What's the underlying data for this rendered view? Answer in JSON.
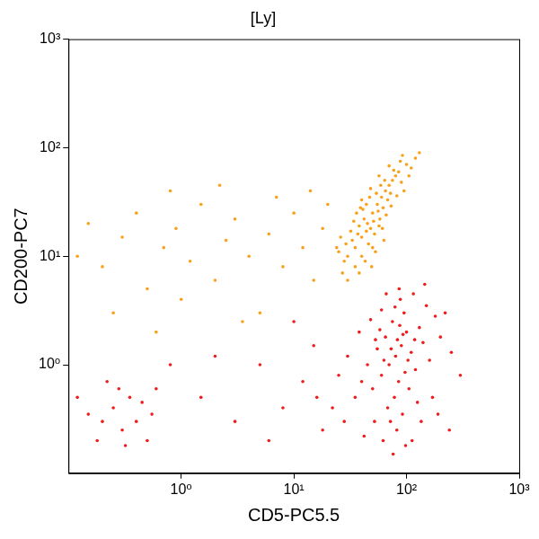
{
  "chart_data": {
    "type": "scatter",
    "title": "[Ly]",
    "x_label": "CD5-PC5.5",
    "y_label": "CD200-PC7",
    "log": true,
    "grid": false,
    "marker": "circle",
    "xlim": [
      0.1,
      1000
    ],
    "ylim": [
      0.1,
      1000
    ],
    "xticks": [
      {
        "value": 1,
        "label": "10⁰"
      },
      {
        "value": 10,
        "label": "10¹"
      },
      {
        "value": 100,
        "label": "10²"
      },
      {
        "value": 1000,
        "label": "10³"
      }
    ],
    "yticks": [
      {
        "value": 1,
        "label": "10⁰"
      },
      {
        "value": 10,
        "label": "10¹"
      },
      {
        "value": 100,
        "label": "10²"
      },
      {
        "value": 1000,
        "label": "10³"
      }
    ],
    "series": [
      {
        "color": "#ee1c1c",
        "x": [
          80,
          90,
          70,
          100,
          60,
          110,
          75,
          85,
          95,
          65,
          120,
          130,
          55,
          50,
          140,
          150,
          88,
          78,
          68,
          105,
          160,
          45,
          40,
          180,
          200,
          35,
          60,
          72,
          82,
          92,
          115,
          125,
          58,
          48,
          250,
          300,
          30,
          28,
          62,
          98,
          135,
          170,
          220,
          86,
          66,
          52,
          42,
          76,
          112,
          145,
          93,
          83,
          73,
          103,
          63,
          87,
          97,
          118,
          53,
          79,
          190,
          38,
          25,
          22,
          240,
          0.2,
          0.25,
          0.3,
          0.35,
          0.4,
          0.15,
          0.18,
          0.45,
          0.5,
          0.28,
          0.22,
          0.55,
          0.12,
          0.32,
          0.6,
          1.5,
          3,
          5,
          8,
          12,
          15,
          18,
          2,
          10,
          6,
          0.8,
          16
        ],
        "values": [
          1.2,
          1.5,
          1.0,
          2.0,
          0.8,
          1.3,
          2.5,
          0.7,
          3.0,
          1.8,
          0.9,
          2.2,
          1.4,
          0.6,
          1.6,
          3.5,
          4.0,
          0.5,
          0.4,
          0.6,
          1.1,
          1.0,
          0.7,
          2.8,
          1.8,
          0.5,
          3.2,
          0.3,
          0.25,
          0.35,
          4.5,
          0.45,
          2.1,
          2.6,
          1.3,
          0.8,
          1.2,
          0.3,
          0.2,
          0.18,
          0.3,
          0.5,
          3.0,
          5.0,
          4.5,
          0.3,
          0.22,
          0.15,
          0.2,
          5.5,
          1.9,
          1.7,
          1.4,
          1.1,
          1.1,
          2.3,
          0.85,
          1.7,
          1.7,
          3.4,
          0.35,
          2.0,
          0.8,
          0.4,
          0.25,
          0.3,
          0.4,
          0.25,
          0.5,
          0.3,
          0.35,
          0.2,
          0.45,
          0.2,
          0.6,
          0.7,
          0.35,
          0.5,
          0.18,
          0.6,
          0.5,
          0.3,
          1.0,
          0.4,
          0.7,
          1.5,
          0.25,
          1.2,
          2.5,
          0.2,
          1.0,
          0.5
        ]
      },
      {
        "color": "#f9a11b",
        "x": [
          45,
          50,
          40,
          55,
          35,
          60,
          48,
          42,
          52,
          38,
          65,
          70,
          30,
          33,
          58,
          62,
          46,
          36,
          75,
          80,
          28,
          25,
          44,
          54,
          68,
          40,
          32,
          57,
          85,
          90,
          50,
          47,
          39,
          72,
          64,
          100,
          110,
          120,
          95,
          27,
          30,
          35,
          43,
          53,
          49,
          41,
          59,
          77,
          88,
          66,
          37,
          34,
          51,
          56,
          61,
          44,
          29,
          73,
          82,
          105,
          26,
          24,
          48,
          57,
          70,
          130,
          92,
          40,
          38,
          63,
          0.15,
          0.2,
          0.3,
          0.4,
          0.5,
          0.7,
          0.9,
          1.2,
          1.5,
          2,
          2.5,
          3,
          4,
          5,
          6,
          8,
          10,
          12,
          15,
          18,
          0.25,
          0.6,
          1,
          3.5,
          7,
          0.12,
          0.8,
          2.2,
          20,
          14
        ],
        "values": [
          20,
          25,
          15,
          30,
          12,
          35,
          18,
          22,
          16,
          19,
          40,
          45,
          10,
          14,
          22,
          28,
          13,
          25,
          50,
          55,
          9,
          11,
          30,
          38,
          33,
          10,
          17,
          19,
          60,
          48,
          12,
          35,
          28,
          38,
          50,
          70,
          65,
          80,
          40,
          7,
          6,
          8,
          9,
          11,
          8,
          27,
          45,
          62,
          75,
          24,
          16,
          21,
          21,
          26,
          18,
          17,
          13,
          29,
          36,
          55,
          15,
          12,
          42,
          55,
          68,
          90,
          85,
          33,
          7,
          14,
          20,
          8,
          15,
          25,
          5,
          12,
          18,
          9,
          30,
          6,
          14,
          22,
          10,
          3,
          16,
          8,
          25,
          12,
          6,
          18,
          3,
          2,
          4,
          2.5,
          35,
          10,
          40,
          45,
          30,
          40
        ]
      }
    ]
  }
}
